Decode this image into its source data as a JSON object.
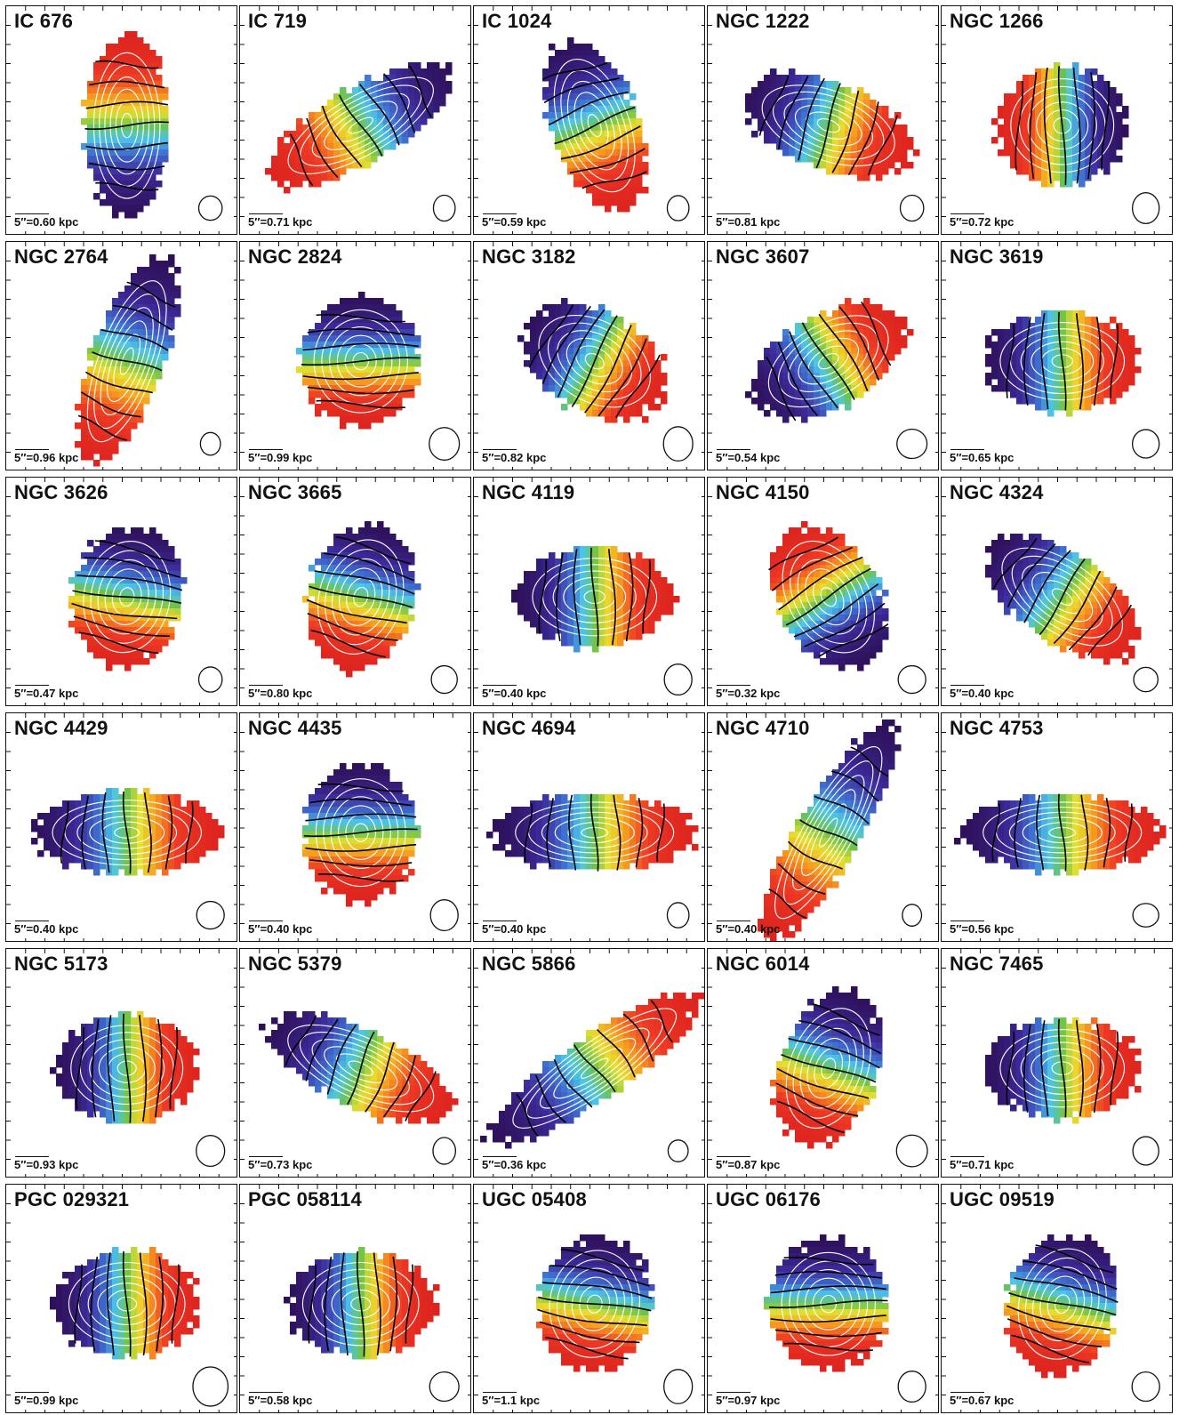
{
  "panels": [
    {
      "name": "IC 676",
      "scale": "5″=0.60 kpc",
      "pa": -90,
      "elong": 2.2,
      "beam": [
        0.88,
        0.88,
        0.022,
        0.02
      ]
    },
    {
      "name": "IC 719",
      "scale": "5″=0.71 kpc",
      "pa": 150,
      "elong": 2.8,
      "beam": [
        0.88,
        0.88,
        0.018,
        0.024
      ]
    },
    {
      "name": "IC 1024",
      "scale": "5″=0.59 kpc",
      "pa": 70,
      "elong": 2.0,
      "beam": [
        0.88,
        0.88,
        0.018,
        0.022
      ]
    },
    {
      "name": "NGC 1222",
      "scale": "5″=0.81 kpc",
      "pa": 20,
      "elong": 2.0,
      "beam": [
        0.88,
        0.88,
        0.022,
        0.024
      ]
    },
    {
      "name": "NGC 1266",
      "scale": "5″=0.72 kpc",
      "pa": 180,
      "elong": 1.1,
      "beam": [
        0.88,
        0.88,
        0.03,
        0.036
      ]
    },
    {
      "name": "NGC 2764",
      "scale": "5″=0.96 kpc",
      "pa": 110,
      "elong": 3.0,
      "beam": [
        0.88,
        0.88,
        0.014,
        0.016
      ]
    },
    {
      "name": "NGC 2824",
      "scale": "5″=0.99 kpc",
      "pa": 90,
      "elong": 1.1,
      "beam": [
        0.88,
        0.88,
        0.038,
        0.04
      ]
    },
    {
      "name": "NGC 3182",
      "scale": "5″=0.82 kpc",
      "pa": 30,
      "elong": 1.5,
      "beam": [
        0.88,
        0.88,
        0.036,
        0.044
      ]
    },
    {
      "name": "NGC 3607",
      "scale": "5″=0.54 kpc",
      "pa": -30,
      "elong": 1.8,
      "beam": [
        0.88,
        0.88,
        0.038,
        0.032
      ]
    },
    {
      "name": "NGC 3619",
      "scale": "5″=0.65 kpc",
      "pa": 0,
      "elong": 1.6,
      "beam": [
        0.88,
        0.88,
        0.03,
        0.03
      ]
    },
    {
      "name": "NGC 3626",
      "scale": "5″=0.47 kpc",
      "pa": 100,
      "elong": 1.3,
      "beam": [
        0.88,
        0.88,
        0.022,
        0.022
      ]
    },
    {
      "name": "NGC 3665",
      "scale": "5″=0.80 kpc",
      "pa": 105,
      "elong": 1.4,
      "beam": [
        0.88,
        0.88,
        0.028,
        0.028
      ]
    },
    {
      "name": "NGC 4119",
      "scale": "5″=0.40 kpc",
      "pa": 0,
      "elong": 1.6,
      "beam": [
        0.88,
        0.88,
        0.032,
        0.036
      ]
    },
    {
      "name": "NGC 4150",
      "scale": "5″=0.32 kpc",
      "pa": -120,
      "elong": 1.5,
      "beam": [
        0.88,
        0.88,
        0.032,
        0.028
      ]
    },
    {
      "name": "NGC 4324",
      "scale": "5″=0.40 kpc",
      "pa": 35,
      "elong": 2.0,
      "beam": [
        0.88,
        0.88,
        0.024,
        0.02
      ]
    },
    {
      "name": "NGC 4429",
      "scale": "5″=0.40 kpc",
      "pa": 0,
      "elong": 2.3,
      "beam": [
        0.88,
        0.88,
        0.032,
        0.028
      ]
    },
    {
      "name": "NGC 4435",
      "scale": "5″=0.40 kpc",
      "pa": 90,
      "elong": 1.2,
      "beam": [
        0.88,
        0.88,
        0.032,
        0.036
      ]
    },
    {
      "name": "NGC 4694",
      "scale": "5″=0.40 kpc",
      "pa": 0,
      "elong": 2.6,
      "beam": [
        0.88,
        0.88,
        0.018,
        0.022
      ]
    },
    {
      "name": "NGC 4710",
      "scale": "5″=0.40 kpc",
      "pa": 120,
      "elong": 4.0,
      "beam": [
        0.88,
        0.88,
        0.012,
        0.014
      ]
    },
    {
      "name": "NGC 4753",
      "scale": "5″=0.56 kpc",
      "pa": 0,
      "elong": 2.6,
      "beam": [
        0.88,
        0.88,
        0.028,
        0.018
      ]
    },
    {
      "name": "NGC 5173",
      "scale": "5″=0.93 kpc",
      "pa": 0,
      "elong": 1.3,
      "beam": [
        0.88,
        0.88,
        0.034,
        0.036
      ]
    },
    {
      "name": "NGC 5379",
      "scale": "5″=0.73 kpc",
      "pa": 25,
      "elong": 2.6,
      "beam": [
        0.88,
        0.88,
        0.02,
        0.026
      ]
    },
    {
      "name": "NGC 5866",
      "scale": "5″=0.36 kpc",
      "pa": -35,
      "elong": 4.0,
      "beam": [
        0.88,
        0.88,
        0.014,
        0.014
      ]
    },
    {
      "name": "NGC 6014",
      "scale": "5″=0.87 kpc",
      "pa": 110,
      "elong": 1.6,
      "beam": [
        0.88,
        0.88,
        0.04,
        0.038
      ]
    },
    {
      "name": "NGC 7465",
      "scale": "5″=0.71 kpc",
      "pa": 0,
      "elong": 1.6,
      "beam": [
        0.88,
        0.88,
        0.028,
        0.03
      ]
    },
    {
      "name": "PGC 029321",
      "scale": "5″=0.99 kpc",
      "pa": 0,
      "elong": 1.4,
      "beam": [
        0.88,
        0.88,
        0.05,
        0.056
      ]
    },
    {
      "name": "PGC 058114",
      "scale": "5″=0.58 kpc",
      "pa": 0,
      "elong": 1.4,
      "beam": [
        0.88,
        0.88,
        0.036,
        0.032
      ]
    },
    {
      "name": "UGC 05408",
      "scale": "5″=1.1 kpc",
      "pa": 100,
      "elong": 1.2,
      "beam": [
        0.88,
        0.88,
        0.034,
        0.044
      ]
    },
    {
      "name": "UGC 06176",
      "scale": "5″=0.97 kpc",
      "pa": 90,
      "elong": 1.1,
      "beam": [
        0.88,
        0.88,
        0.032,
        0.036
      ]
    },
    {
      "name": "UGC 09519",
      "scale": "5″=0.67 kpc",
      "pa": 105,
      "elong": 1.3,
      "beam": [
        0.88,
        0.88,
        0.032,
        0.032
      ]
    }
  ],
  "colormap": [
    "#2b0a4a",
    "#3d2a9a",
    "#3f6fd0",
    "#4ec7e8",
    "#6cc24a",
    "#e8e030",
    "#f7a020",
    "#ee3a24",
    "#d91e1e"
  ],
  "contour_colors": {
    "velocity": "#000000",
    "intensity": "#ffffff"
  }
}
